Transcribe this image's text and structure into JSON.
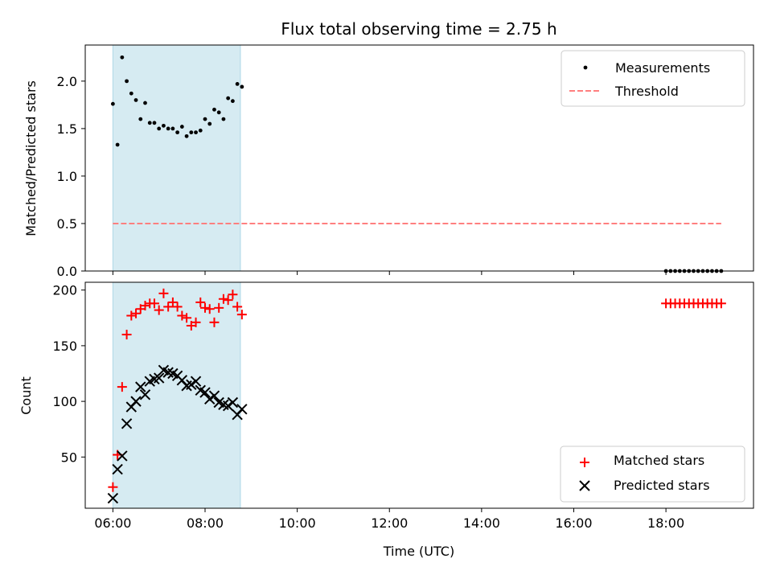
{
  "chart_data": [
    {
      "type": "scatter",
      "title": "Flux total observing time = 2.75 h",
      "xlabel": "",
      "ylabel": "Matched/Predicted stars",
      "ylim": [
        0,
        2.38
      ],
      "xlim": [
        "05:24",
        "19:54"
      ],
      "shaded_span": {
        "start": "06:00",
        "end": "08:46",
        "color": "#add8e6"
      },
      "yticks": [
        "0.0",
        "0.5",
        "1.0",
        "1.5",
        "2.0"
      ],
      "legend": {
        "position": "upper right",
        "entries": [
          "Measurements",
          "Threshold"
        ]
      },
      "series": [
        {
          "name": "Measurements",
          "marker": "dot",
          "color": "#000000",
          "x": [
            "06:00",
            "06:06",
            "06:12",
            "06:18",
            "06:24",
            "06:30",
            "06:36",
            "06:42",
            "06:48",
            "06:54",
            "07:00",
            "07:06",
            "07:12",
            "07:18",
            "07:24",
            "07:30",
            "07:36",
            "07:42",
            "07:48",
            "07:54",
            "08:00",
            "08:06",
            "08:12",
            "08:18",
            "08:24",
            "08:30",
            "08:36",
            "08:42",
            "08:48",
            "18:00",
            "18:06",
            "18:12",
            "18:18",
            "18:24",
            "18:30",
            "18:36",
            "18:42",
            "18:48",
            "18:54",
            "19:00",
            "19:06",
            "19:12"
          ],
          "y": [
            1.76,
            1.33,
            2.25,
            2.0,
            1.87,
            1.8,
            1.6,
            1.77,
            1.56,
            1.56,
            1.5,
            1.53,
            1.5,
            1.5,
            1.46,
            1.52,
            1.42,
            1.46,
            1.46,
            1.48,
            1.6,
            1.55,
            1.7,
            1.67,
            1.6,
            1.82,
            1.79,
            1.97,
            1.94,
            0,
            0,
            0,
            0,
            0,
            0,
            0,
            0,
            0,
            0,
            0,
            0,
            0
          ]
        },
        {
          "name": "Threshold",
          "style": "dashed",
          "color": "#ff7f7f",
          "x": [
            "06:00",
            "19:12"
          ],
          "y": [
            0.5,
            0.5
          ]
        }
      ]
    },
    {
      "type": "scatter",
      "title": "",
      "xlabel": "Time (UTC)",
      "ylabel": "Count",
      "ylim": [
        4,
        207
      ],
      "xlim": [
        "05:24",
        "19:54"
      ],
      "shaded_span": {
        "start": "06:00",
        "end": "08:46",
        "color": "#add8e6"
      },
      "xticks": [
        "06:00",
        "08:00",
        "10:00",
        "12:00",
        "14:00",
        "16:00",
        "18:00"
      ],
      "yticks": [
        "50",
        "100",
        "150",
        "200"
      ],
      "legend": {
        "position": "lower right",
        "entries": [
          "Matched stars",
          "Predicted stars"
        ]
      },
      "series": [
        {
          "name": "Matched stars",
          "marker": "plus",
          "color": "#ff0000",
          "x": [
            "06:00",
            "06:06",
            "06:12",
            "06:18",
            "06:24",
            "06:30",
            "06:36",
            "06:42",
            "06:48",
            "06:54",
            "07:00",
            "07:06",
            "07:12",
            "07:18",
            "07:24",
            "07:30",
            "07:36",
            "07:42",
            "07:48",
            "07:54",
            "08:00",
            "08:06",
            "08:12",
            "08:18",
            "08:24",
            "08:30",
            "08:36",
            "08:42",
            "08:48",
            "18:00",
            "18:06",
            "18:12",
            "18:18",
            "18:24",
            "18:30",
            "18:36",
            "18:42",
            "18:48",
            "18:54",
            "19:00",
            "19:06",
            "19:12"
          ],
          "y": [
            23,
            52,
            113,
            160,
            177,
            179,
            183,
            186,
            188,
            188,
            182,
            197,
            185,
            189,
            185,
            177,
            175,
            168,
            171,
            189,
            184,
            183,
            171,
            184,
            192,
            191,
            196,
            185,
            178,
            188,
            188,
            188,
            188,
            188,
            188,
            188,
            188,
            188,
            188,
            188,
            188,
            188
          ]
        },
        {
          "name": "Predicted stars",
          "marker": "x",
          "color": "#000000",
          "x": [
            "06:00",
            "06:06",
            "06:12",
            "06:18",
            "06:24",
            "06:30",
            "06:36",
            "06:42",
            "06:48",
            "06:54",
            "07:00",
            "07:06",
            "07:12",
            "07:18",
            "07:24",
            "07:30",
            "07:36",
            "07:42",
            "07:48",
            "07:54",
            "08:00",
            "08:06",
            "08:12",
            "08:18",
            "08:24",
            "08:30",
            "08:36",
            "08:42",
            "08:48"
          ],
          "y": [
            13,
            39,
            51,
            80,
            95,
            100,
            113,
            106,
            118,
            120,
            121,
            128,
            126,
            125,
            123,
            119,
            114,
            115,
            118,
            110,
            108,
            102,
            105,
            99,
            97,
            96,
            99,
            88,
            93
          ]
        }
      ]
    }
  ]
}
